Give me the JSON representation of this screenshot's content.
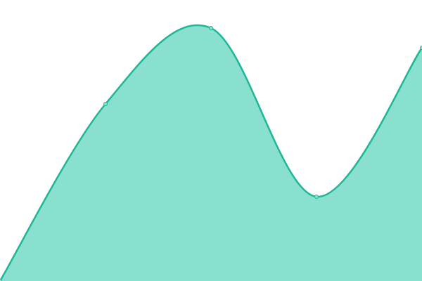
{
  "chart_data": {
    "type": "area",
    "categories": [
      null,
      null,
      null,
      null,
      null
    ],
    "values": [
      0,
      252,
      360,
      120,
      332
    ],
    "ylim": [
      0,
      400
    ],
    "color": "#1db794",
    "fill_color": "#8ae0ce",
    "markers": true,
    "smooth": true
  }
}
